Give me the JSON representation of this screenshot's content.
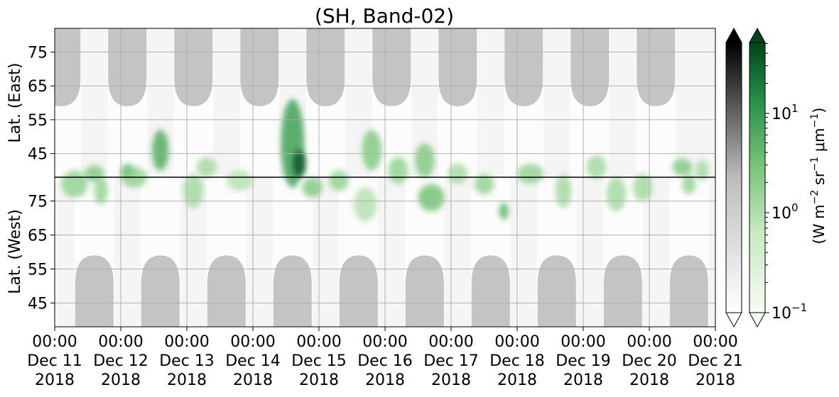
{
  "chart_data": {
    "type": "heatmap",
    "title": "(SH, Band-02)",
    "xlabel": "",
    "x_ticks": [
      {
        "line1": "00:00",
        "line2": "Dec 11",
        "line3": "2018"
      },
      {
        "line1": "00:00",
        "line2": "Dec 12",
        "line3": "2018"
      },
      {
        "line1": "00:00",
        "line2": "Dec 13",
        "line3": "2018"
      },
      {
        "line1": "00:00",
        "line2": "Dec 14",
        "line3": "2018"
      },
      {
        "line1": "00:00",
        "line2": "Dec 15",
        "line3": "2018"
      },
      {
        "line1": "00:00",
        "line2": "Dec 16",
        "line3": "2018"
      },
      {
        "line1": "00:00",
        "line2": "Dec 17",
        "line3": "2018"
      },
      {
        "line1": "00:00",
        "line2": "Dec 18",
        "line3": "2018"
      },
      {
        "line1": "00:00",
        "line2": "Dec 19",
        "line3": "2018"
      },
      {
        "line1": "00:00",
        "line2": "Dec 20",
        "line3": "2018"
      },
      {
        "line1": "00:00",
        "line2": "Dec 21",
        "line3": "2018"
      }
    ],
    "x_range": [
      "2018-12-11 00:00",
      "2018-12-21 00:00"
    ],
    "panels": [
      {
        "ylabel": "Lat. (East)",
        "ticks": [
          "45",
          "55",
          "65",
          "75"
        ]
      },
      {
        "ylabel": "Lat. (West)",
        "ticks": [
          "75",
          "65",
          "55",
          "45"
        ]
      }
    ],
    "colorbars": [
      {
        "cmap": "gray_r",
        "extend": "both"
      },
      {
        "cmap": "Greens",
        "extend": "both",
        "scale": "log",
        "ticks": [
          {
            "base": "10",
            "exp": "1"
          },
          {
            "base": "10",
            "exp": "0"
          },
          {
            "base": "10",
            "exp": "−1"
          }
        ]
      }
    ],
    "colorbar_label": {
      "pre": "(W m",
      "e1": "−2",
      "mid1": " sr",
      "e2": "−1",
      "mid2": " μm",
      "e3": "−1",
      "post": ")"
    },
    "gray_night_days": [
      11.6,
      12.6,
      13.6,
      14.6,
      15.6,
      16.6,
      17.6,
      18.6,
      19.6,
      20.6
    ],
    "gray_east_days": [
      11.1,
      12.1,
      13.1,
      14.1,
      15.1,
      16.1,
      17.1,
      18.1,
      19.1,
      20.1
    ],
    "green_blobs": [
      {
        "day": 11.3,
        "lat": -2,
        "w": 0.4,
        "h": 8,
        "v": 0.45
      },
      {
        "day": 11.6,
        "lat": 1,
        "w": 0.3,
        "h": 5,
        "v": 0.5
      },
      {
        "day": 11.7,
        "lat": -4,
        "w": 0.2,
        "h": 8,
        "v": 0.45
      },
      {
        "day": 12.2,
        "lat": 0,
        "w": 0.4,
        "h": 6,
        "v": 0.45
      },
      {
        "day": 12.1,
        "lat": 2,
        "w": 0.2,
        "h": 4,
        "v": 0.55
      },
      {
        "day": 12.6,
        "lat": 8,
        "w": 0.25,
        "h": 12,
        "v": 0.65
      },
      {
        "day": 13.1,
        "lat": -4,
        "w": 0.3,
        "h": 10,
        "v": 0.4
      },
      {
        "day": 13.3,
        "lat": 3,
        "w": 0.3,
        "h": 6,
        "v": 0.4
      },
      {
        "day": 13.8,
        "lat": -1,
        "w": 0.4,
        "h": 6,
        "v": 0.35
      },
      {
        "day": 14.6,
        "lat": 10,
        "w": 0.35,
        "h": 26,
        "v": 0.7
      },
      {
        "day": 14.7,
        "lat": 4,
        "w": 0.2,
        "h": 8,
        "v": 0.95
      },
      {
        "day": 14.9,
        "lat": -3,
        "w": 0.3,
        "h": 6,
        "v": 0.5
      },
      {
        "day": 15.3,
        "lat": -1,
        "w": 0.3,
        "h": 6,
        "v": 0.45
      },
      {
        "day": 15.8,
        "lat": 8,
        "w": 0.3,
        "h": 12,
        "v": 0.5
      },
      {
        "day": 15.7,
        "lat": -8,
        "w": 0.35,
        "h": 10,
        "v": 0.35
      },
      {
        "day": 16.2,
        "lat": 2,
        "w": 0.3,
        "h": 8,
        "v": 0.45
      },
      {
        "day": 16.6,
        "lat": 5,
        "w": 0.3,
        "h": 10,
        "v": 0.5
      },
      {
        "day": 16.7,
        "lat": -6,
        "w": 0.4,
        "h": 8,
        "v": 0.55
      },
      {
        "day": 17.1,
        "lat": 1,
        "w": 0.3,
        "h": 6,
        "v": 0.4
      },
      {
        "day": 17.5,
        "lat": -2,
        "w": 0.3,
        "h": 6,
        "v": 0.45
      },
      {
        "day": 17.8,
        "lat": -10,
        "w": 0.15,
        "h": 5,
        "v": 0.6
      },
      {
        "day": 18.2,
        "lat": 1,
        "w": 0.4,
        "h": 6,
        "v": 0.45
      },
      {
        "day": 18.7,
        "lat": -4,
        "w": 0.25,
        "h": 10,
        "v": 0.4
      },
      {
        "day": 19.2,
        "lat": 3,
        "w": 0.3,
        "h": 7,
        "v": 0.4
      },
      {
        "day": 19.5,
        "lat": -5,
        "w": 0.3,
        "h": 10,
        "v": 0.4
      },
      {
        "day": 19.9,
        "lat": -3,
        "w": 0.3,
        "h": 8,
        "v": 0.4
      },
      {
        "day": 20.5,
        "lat": 3,
        "w": 0.3,
        "h": 5,
        "v": 0.5
      },
      {
        "day": 20.6,
        "lat": -2,
        "w": 0.2,
        "h": 6,
        "v": 0.45
      },
      {
        "day": 20.8,
        "lat": 2,
        "w": 0.2,
        "h": 6,
        "v": 0.4
      }
    ]
  }
}
